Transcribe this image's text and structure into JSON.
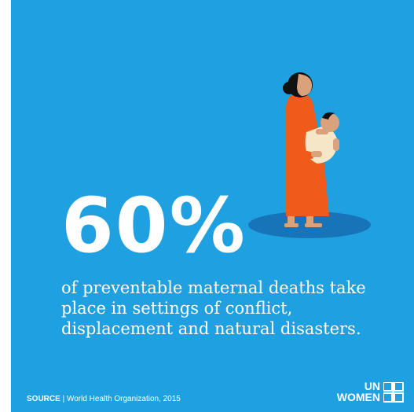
{
  "headline": {
    "value": "60%"
  },
  "description": "of preventable maternal deaths take place in settings of conflict, displacement and natural disasters.",
  "source": {
    "label": "SOURCE",
    "separator": "|",
    "text": "World Health Organization, 2015"
  },
  "logo": {
    "line1": "UN",
    "line2": "WOMEN"
  },
  "colors": {
    "background": "#1fa0e0",
    "shadow": "#1774b8",
    "dress": "#f05a1a",
    "skin": "#d9a27d",
    "hair": "#111111",
    "baby_wrap": "#f6e6c8"
  },
  "illustration": {
    "icon": "mother-holding-baby-icon"
  }
}
